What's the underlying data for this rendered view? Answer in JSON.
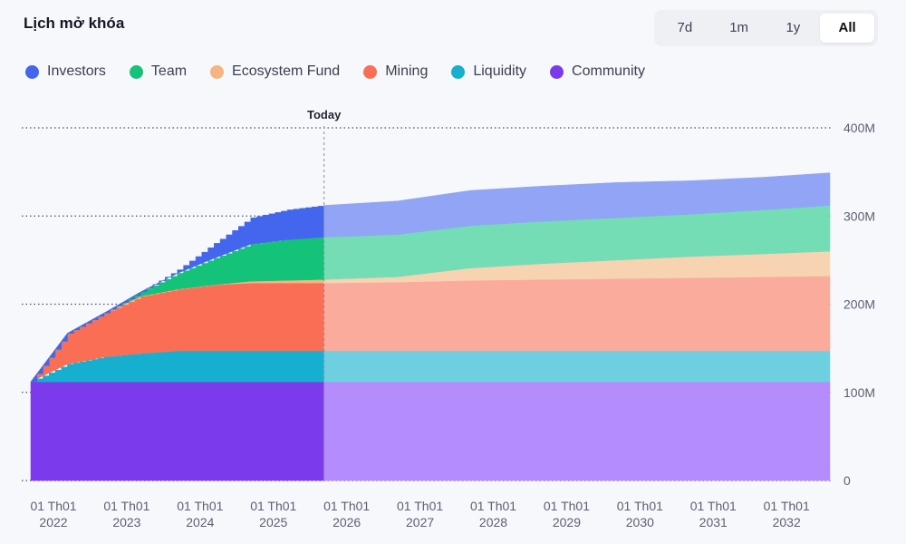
{
  "header": {
    "title": "Lịch mở khóa"
  },
  "range_selector": {
    "options": [
      {
        "label": "7d",
        "active": false
      },
      {
        "label": "1m",
        "active": false
      },
      {
        "label": "1y",
        "active": false
      },
      {
        "label": "All",
        "active": true
      }
    ]
  },
  "chart_data": {
    "type": "area",
    "stacked": true,
    "today_label": "Today",
    "today_year": 2026.0,
    "x_range": [
      2022.0,
      2032.9
    ],
    "ylim": [
      0,
      400
    ],
    "y_unit": "M",
    "y_ticks": [
      {
        "value": 0,
        "label": "0"
      },
      {
        "value": 100,
        "label": "100M"
      },
      {
        "value": 200,
        "label": "200M"
      },
      {
        "value": 300,
        "label": "300M"
      },
      {
        "value": 400,
        "label": "400M"
      }
    ],
    "x_ticks": [
      {
        "value": 2022,
        "line1": "01 Th01",
        "line2": "2022"
      },
      {
        "value": 2023,
        "line1": "01 Th01",
        "line2": "2023"
      },
      {
        "value": 2024,
        "line1": "01 Th01",
        "line2": "2024"
      },
      {
        "value": 2025,
        "line1": "01 Th01",
        "line2": "2025"
      },
      {
        "value": 2026,
        "line1": "01 Th01",
        "line2": "2026"
      },
      {
        "value": 2027,
        "line1": "01 Th01",
        "line2": "2027"
      },
      {
        "value": 2028,
        "line1": "01 Th01",
        "line2": "2028"
      },
      {
        "value": 2029,
        "line1": "01 Th01",
        "line2": "2029"
      },
      {
        "value": 2030,
        "line1": "01 Th01",
        "line2": "2030"
      },
      {
        "value": 2031,
        "line1": "01 Th01",
        "line2": "2031"
      },
      {
        "value": 2032,
        "line1": "01 Th01",
        "line2": "2032"
      }
    ],
    "x": [
      2022.0,
      2022.5,
      2023.0,
      2023.5,
      2024.0,
      2024.5,
      2025.0,
      2025.5,
      2026.0,
      2027.0,
      2028.0,
      2029.0,
      2030.0,
      2031.0,
      2032.0,
      2032.9
    ],
    "series": [
      {
        "name": "Community",
        "color": "#7c3aed",
        "future_color": "#b48cfc",
        "values": [
          112,
          112,
          112,
          112,
          112,
          112,
          112,
          112,
          112,
          112,
          112,
          112,
          112,
          112,
          112,
          112
        ]
      },
      {
        "name": "Liquidity",
        "color": "#16afd0",
        "future_color": "#6ecfe0",
        "values": [
          0,
          20,
          28,
          32,
          35,
          35,
          35,
          35,
          35,
          35,
          35,
          35,
          35,
          35,
          35,
          35
        ]
      },
      {
        "name": "Mining",
        "color": "#fa6e55",
        "future_color": "#fbab9c",
        "values": [
          0,
          35,
          50,
          65,
          70,
          75,
          77,
          77,
          77,
          78,
          80,
          81,
          82,
          83,
          84,
          85
        ]
      },
      {
        "name": "Ecosystem Fund",
        "color": "#f5b482",
        "future_color": "#f8d3b2",
        "values": [
          0,
          0,
          0,
          0,
          0,
          0,
          2,
          3,
          4,
          6,
          14,
          18,
          21,
          24,
          26,
          28
        ]
      },
      {
        "name": "Team",
        "color": "#15c27a",
        "future_color": "#74ddb5",
        "values": [
          0,
          0,
          0,
          5,
          18,
          30,
          42,
          46,
          48,
          48,
          48,
          48,
          48,
          48,
          50,
          52
        ]
      },
      {
        "name": "Investors",
        "color": "#4466ee",
        "future_color": "#92a4f5",
        "values": [
          0,
          0,
          0,
          0,
          4,
          17,
          30,
          34,
          36,
          38,
          40,
          40,
          40,
          38,
          37,
          37
        ]
      }
    ]
  }
}
